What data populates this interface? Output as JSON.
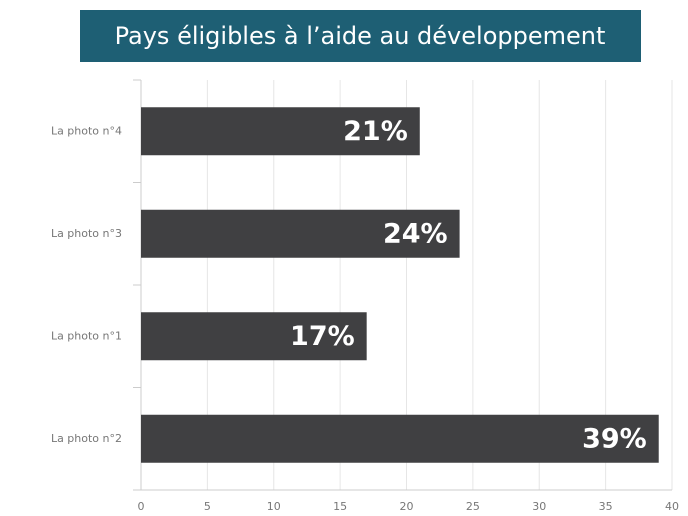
{
  "chart_data": {
    "type": "bar",
    "orientation": "horizontal",
    "title": "Pays éligibles à l’aide au développement",
    "categories": [
      "La photo n°4",
      "La photo n°3",
      "La photo n°1",
      "La photo n°2"
    ],
    "values": [
      21,
      24,
      17,
      39
    ],
    "value_labels": [
      "21%",
      "24%",
      "17%",
      "39%"
    ],
    "color": "#404042",
    "xlim": [
      0,
      40
    ],
    "xticks": [
      0,
      5,
      10,
      15,
      20,
      25,
      30,
      35,
      40
    ],
    "grid": true
  }
}
